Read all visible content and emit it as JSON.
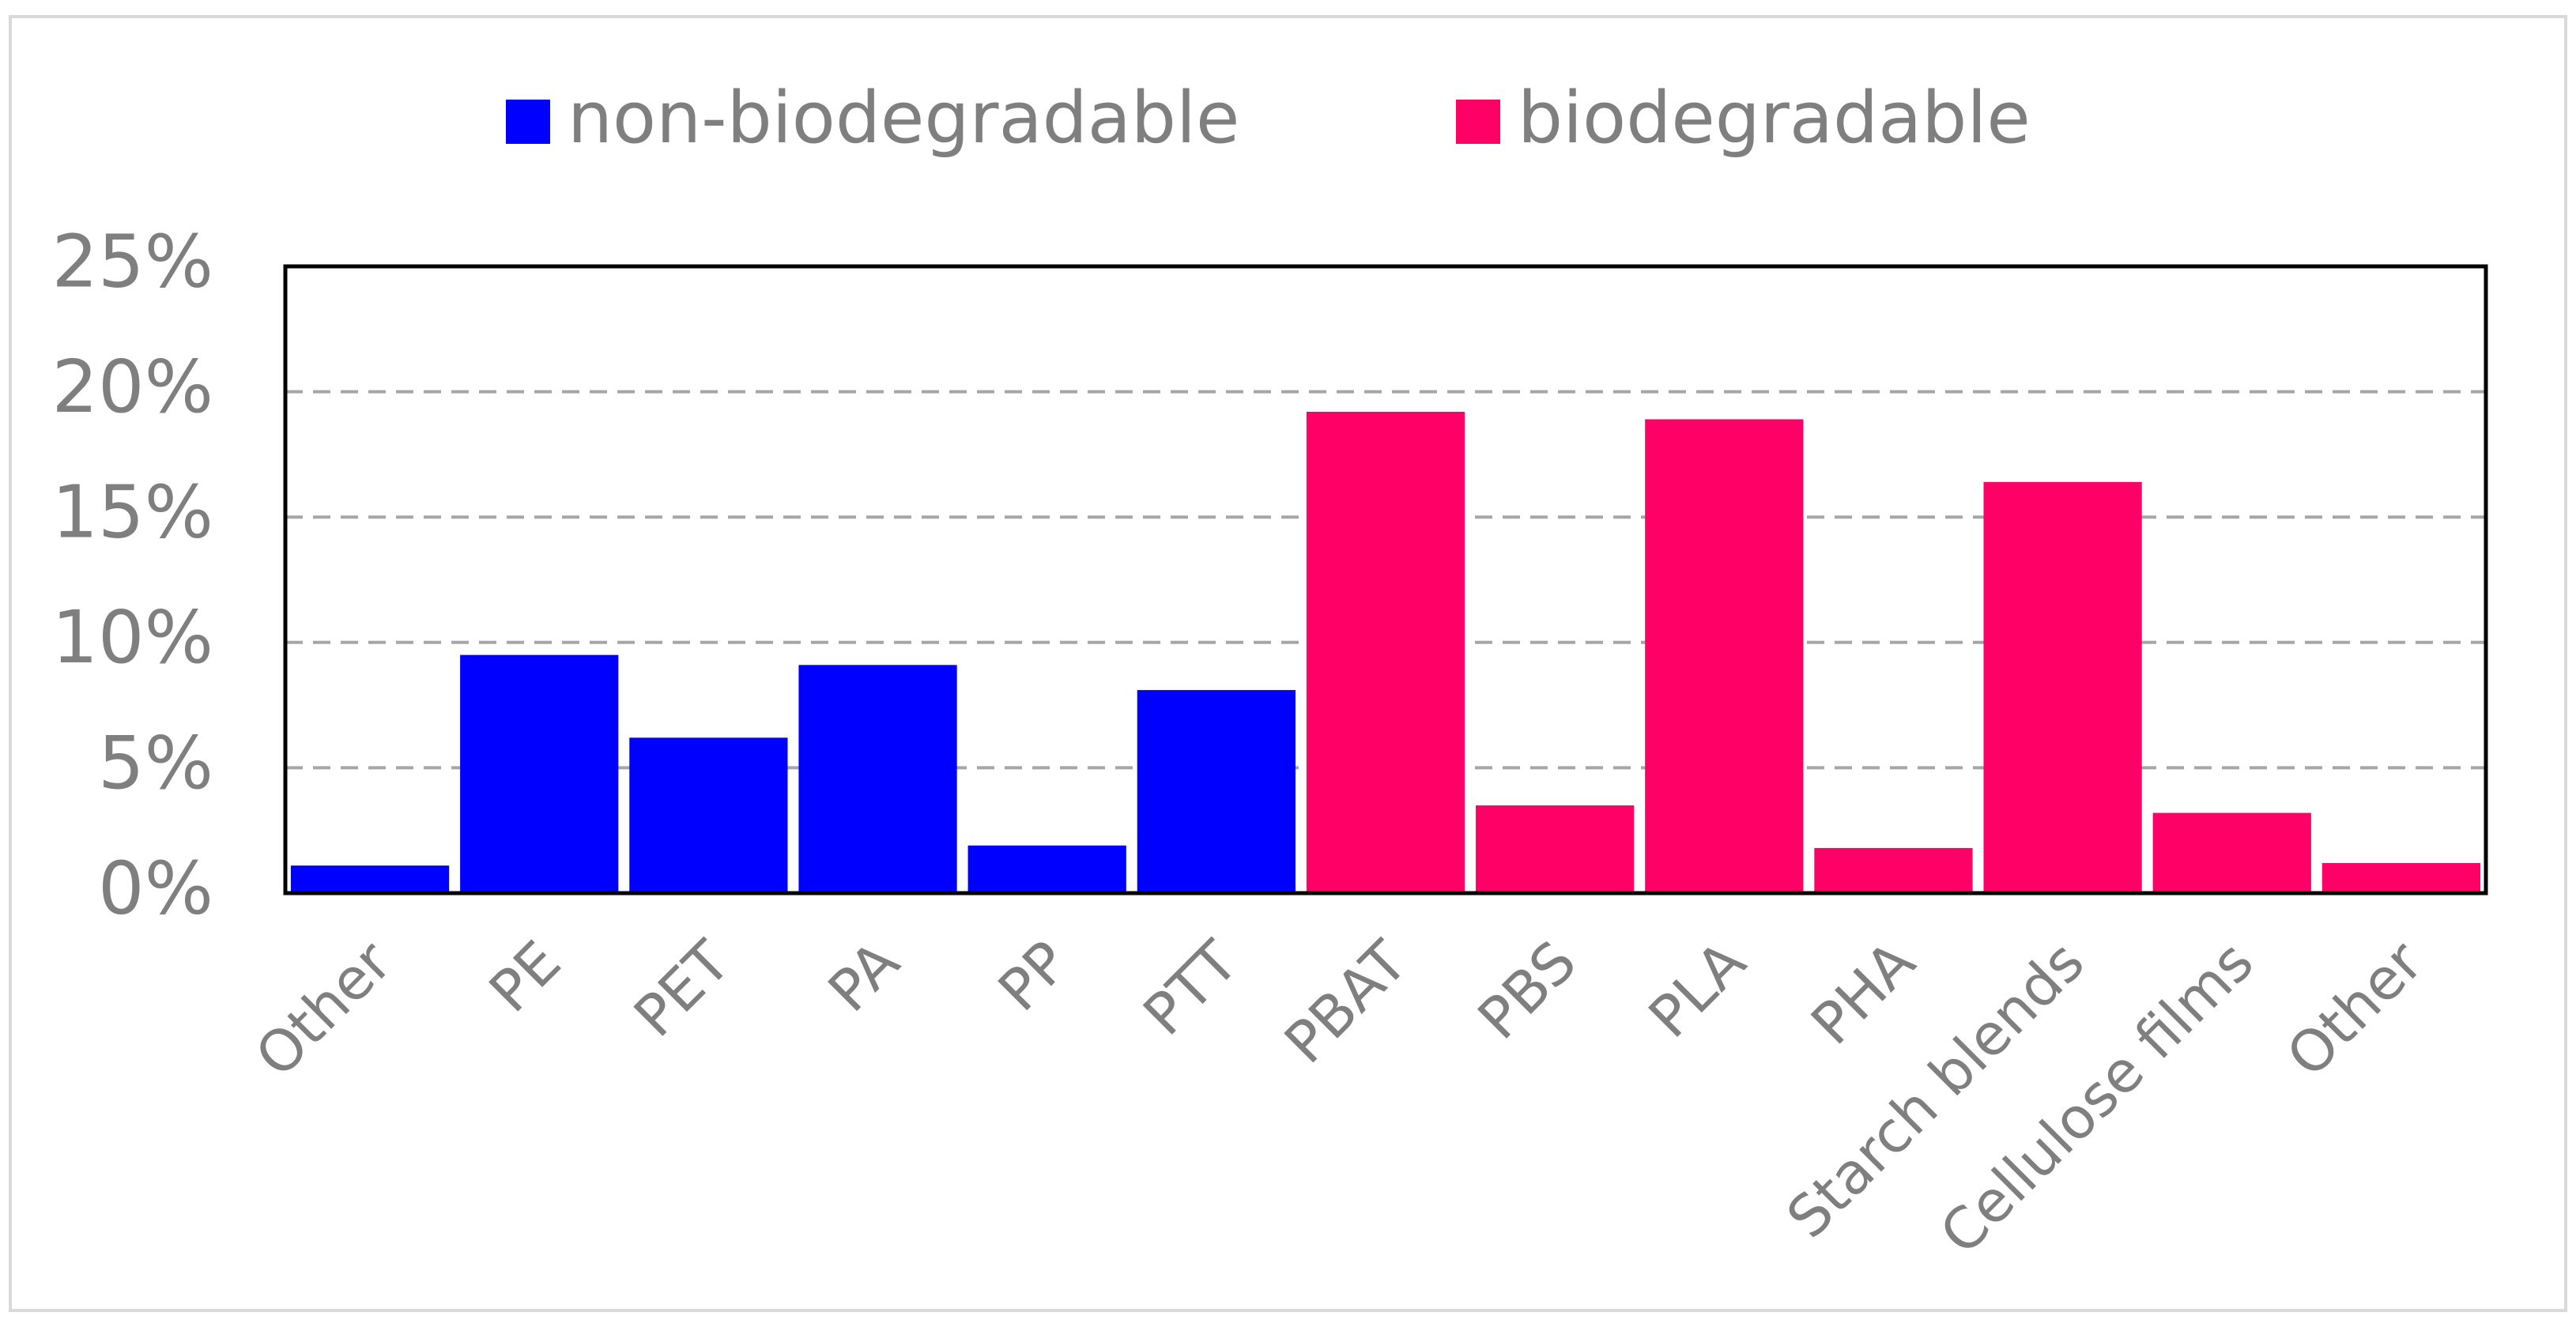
{
  "chart_data": {
    "type": "bar",
    "categories": [
      "Other",
      "PE",
      "PET",
      "PA",
      "PP",
      "PTT",
      "PBAT",
      "PBS",
      "PLA",
      "PHA",
      "Starch blends",
      "Cellulose films",
      "Other"
    ],
    "series": [
      {
        "name": "non-biodegradable",
        "color": "#0000ff",
        "values": [
          1.1,
          9.5,
          6.2,
          9.1,
          1.9,
          8.1,
          null,
          null,
          null,
          null,
          null,
          null,
          null
        ]
      },
      {
        "name": "biodegradable",
        "color": "#ff0066",
        "values": [
          null,
          null,
          null,
          null,
          null,
          null,
          19.2,
          3.5,
          18.9,
          1.8,
          16.4,
          3.2,
          1.2
        ]
      }
    ],
    "yticks": [
      "0%",
      "5%",
      "10%",
      "15%",
      "20%",
      "25%"
    ],
    "ylim": [
      0,
      25
    ],
    "grid": "horizontal dashed",
    "legend": "top-center"
  }
}
